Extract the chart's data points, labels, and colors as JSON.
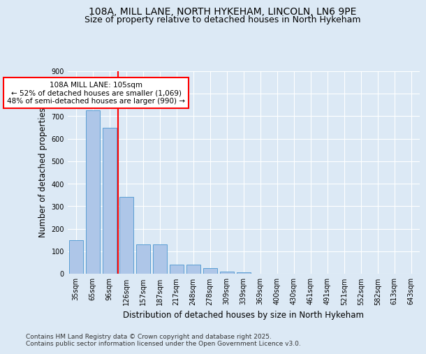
{
  "title_line1": "108A, MILL LANE, NORTH HYKEHAM, LINCOLN, LN6 9PE",
  "title_line2": "Size of property relative to detached houses in North Hykeham",
  "xlabel": "Distribution of detached houses by size in North Hykeham",
  "ylabel": "Number of detached properties",
  "categories": [
    "35sqm",
    "65sqm",
    "96sqm",
    "126sqm",
    "157sqm",
    "187sqm",
    "217sqm",
    "248sqm",
    "278sqm",
    "309sqm",
    "339sqm",
    "369sqm",
    "400sqm",
    "430sqm",
    "461sqm",
    "491sqm",
    "521sqm",
    "552sqm",
    "582sqm",
    "613sqm",
    "643sqm"
  ],
  "values": [
    150,
    725,
    650,
    340,
    130,
    130,
    40,
    40,
    25,
    10,
    5,
    0,
    0,
    0,
    0,
    0,
    0,
    0,
    0,
    0,
    0
  ],
  "bar_color": "#aec6e8",
  "bar_edge_color": "#5a9fd4",
  "vline_x": 2.5,
  "vline_color": "red",
  "annotation_text": "108A MILL LANE: 105sqm\n← 52% of detached houses are smaller (1,069)\n48% of semi-detached houses are larger (990) →",
  "annotation_box_color": "white",
  "annotation_box_edge_color": "red",
  "ylim": [
    0,
    900
  ],
  "yticks": [
    0,
    100,
    200,
    300,
    400,
    500,
    600,
    700,
    800,
    900
  ],
  "bg_color": "#dce9f5",
  "plot_bg_color": "#dce9f5",
  "footer_text": "Contains HM Land Registry data © Crown copyright and database right 2025.\nContains public sector information licensed under the Open Government Licence v3.0.",
  "grid_color": "white",
  "title_fontsize": 10,
  "subtitle_fontsize": 9,
  "tick_fontsize": 7,
  "label_fontsize": 8.5,
  "footer_fontsize": 6.5,
  "annotation_fontsize": 7.5
}
